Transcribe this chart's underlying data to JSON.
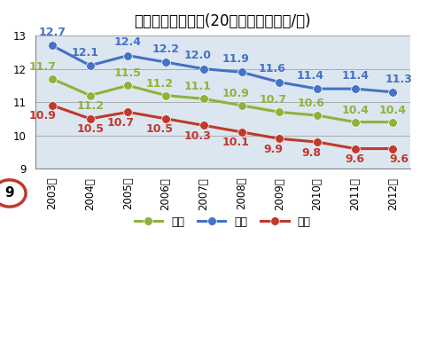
{
  "title": "食塩摄取量平均値(20歳以上、グラム/日)",
  "years": [
    "2003年",
    "2004年",
    "2005年",
    "2006年",
    "2007年",
    "2008年",
    "2009年",
    "2010年",
    "2011年",
    "2012年"
  ],
  "total": [
    11.7,
    11.2,
    11.5,
    11.2,
    11.1,
    10.9,
    10.7,
    10.6,
    10.4,
    10.4
  ],
  "male": [
    12.7,
    12.1,
    12.4,
    12.2,
    12.0,
    11.9,
    11.6,
    11.4,
    11.4,
    11.3
  ],
  "female": [
    10.9,
    10.5,
    10.7,
    10.5,
    10.3,
    10.1,
    9.9,
    9.8,
    9.6,
    9.6
  ],
  "total_color": "#8db33a",
  "male_color": "#4472c4",
  "female_color": "#c0392b",
  "marker": "o",
  "linewidth": 2.2,
  "markersize": 7,
  "ylim": [
    9,
    13
  ],
  "yticks": [
    9,
    10,
    11,
    12,
    13
  ],
  "legend_labels": [
    "総数",
    "男性",
    "女性"
  ],
  "circle_label": "9",
  "bg_color": "#ffffff",
  "plot_bg_color": "#dce6f1",
  "grid_color": "#aaaaaa",
  "title_fontsize": 12,
  "tick_fontsize": 8.5,
  "annotation_fontsize": 9,
  "legend_fontsize": 9
}
